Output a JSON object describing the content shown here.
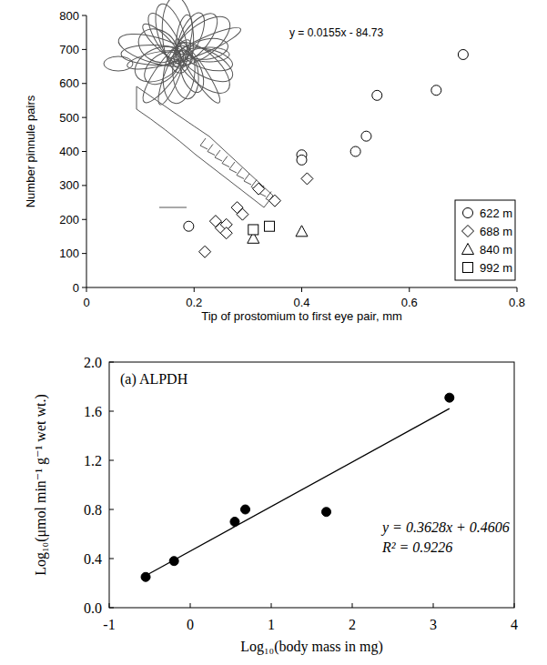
{
  "chart_data": [
    {
      "type": "scatter",
      "x_label": "Tip of prostomium to first eye pair, mm",
      "y_label": "Number pinnule pairs",
      "annotations": [
        "y = 0.0155x - 84.73"
      ],
      "xlim": [
        0,
        0.8
      ],
      "xticks": [
        0,
        0.2,
        0.4,
        0.6,
        0.8
      ],
      "ylim": [
        0,
        800
      ],
      "yticks": [
        0,
        100,
        200,
        300,
        400,
        500,
        600,
        700,
        800
      ],
      "legend": "right",
      "series": [
        {
          "name": "622 m",
          "marker": "circle",
          "color": "#000000",
          "x": [
            0.19,
            0.4,
            0.4,
            0.5,
            0.52,
            0.54,
            0.65,
            0.7
          ],
          "values": [
            180,
            390,
            375,
            400,
            445,
            565,
            580,
            685
          ]
        },
        {
          "name": "688 m",
          "marker": "diamond",
          "color": "#000000",
          "x": [
            0.22,
            0.24,
            0.25,
            0.26,
            0.26,
            0.28,
            0.29,
            0.32,
            0.35,
            0.41
          ],
          "values": [
            105,
            195,
            175,
            185,
            160,
            235,
            215,
            290,
            255,
            320
          ]
        },
        {
          "name": "840 m",
          "marker": "triangle",
          "color": "#000000",
          "x": [
            0.31,
            0.4
          ],
          "values": [
            145,
            165
          ]
        },
        {
          "name": "992 m",
          "marker": "square",
          "color": "#000000",
          "x": [
            0.31,
            0.34
          ],
          "values": [
            170,
            180
          ]
        }
      ]
    },
    {
      "type": "scatter",
      "title": "(a) ALPDH",
      "x_label": "Log₁₀(body mass in mg)",
      "y_label": "Log₁₀(μmol min⁻¹ g⁻¹ wet wt.)",
      "annotations": [
        "y = 0.3628x + 0.4606",
        "R² = 0.9226"
      ],
      "xlim": [
        -1,
        4
      ],
      "xticks": [
        -1,
        0,
        1,
        2,
        3,
        4
      ],
      "ylim": [
        0,
        2
      ],
      "yticks": [
        {
          "value": 0,
          "label": "0.0"
        },
        0.4,
        0.8,
        1.2,
        1.6,
        {
          "value": 2,
          "label": "2.0"
        }
      ],
      "series": [
        {
          "type": "scatter",
          "marker": "dot",
          "color": "#000000",
          "x": [
            -0.55,
            -0.2,
            0.55,
            0.68,
            1.68,
            3.2
          ],
          "values": [
            0.25,
            0.38,
            0.7,
            0.8,
            0.78,
            1.71
          ]
        },
        {
          "type": "line",
          "line_style": "solid",
          "color": "#000000",
          "x": [
            -0.55,
            3.2
          ],
          "values": [
            0.261,
            1.621
          ]
        }
      ]
    }
  ]
}
